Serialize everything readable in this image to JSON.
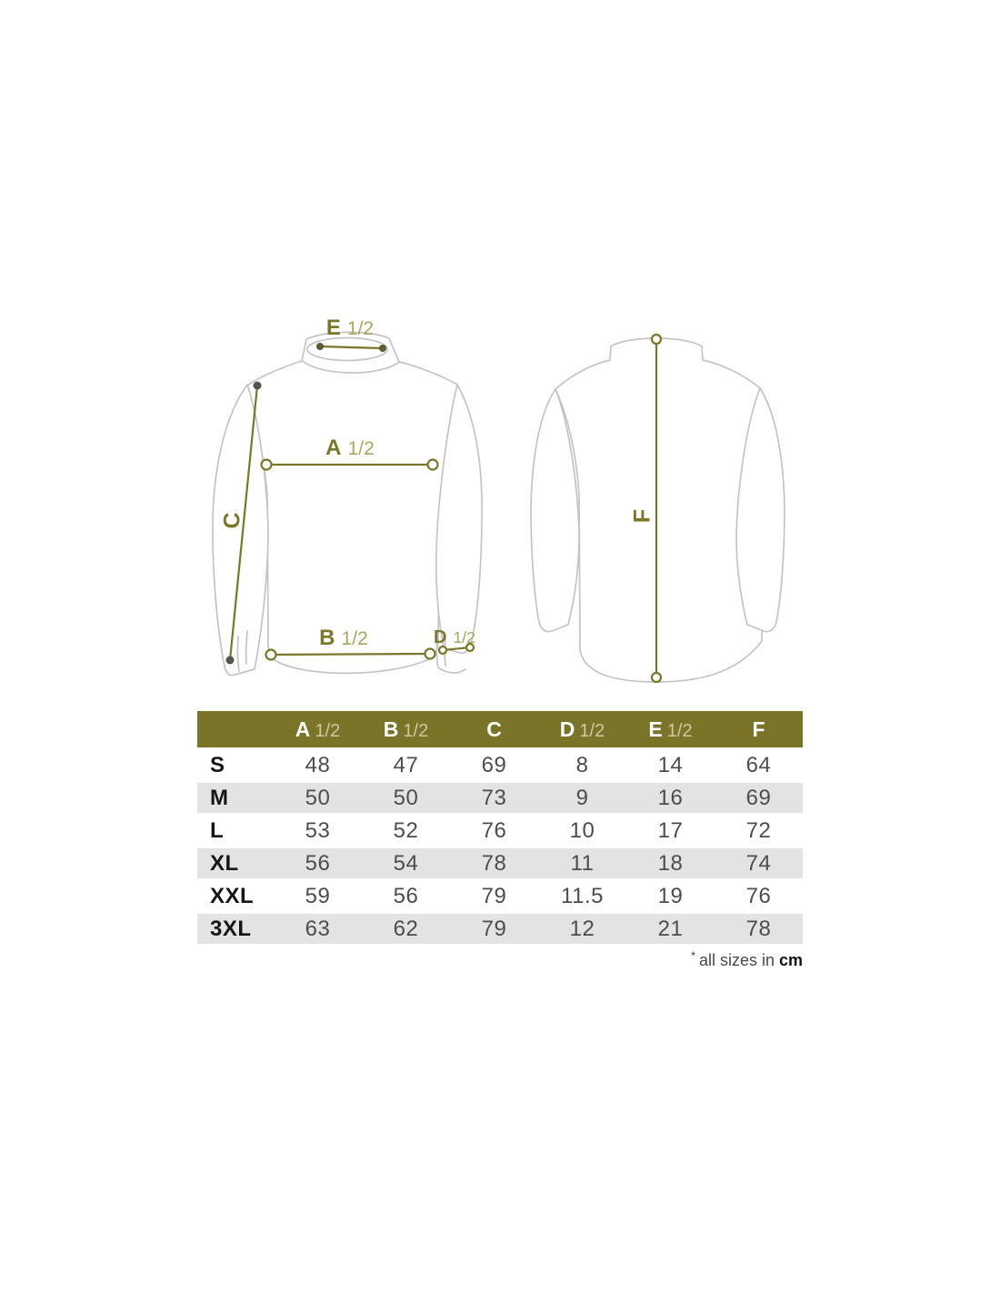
{
  "colors": {
    "accent_olive": "#7A762A",
    "header_bg": "#797428",
    "row_alt_bg": "#E3E3E3",
    "garment_outline": "#C4C4C4",
    "number_text": "#4D4D4D",
    "size_label_text": "#161616",
    "fraction_tint_diagram": "#A9A662",
    "fraction_tint_header": "#CDC9A0"
  },
  "diagram": {
    "labels": {
      "a": {
        "letter": "A",
        "fraction": "1/2"
      },
      "b": {
        "letter": "B",
        "fraction": "1/2"
      },
      "c": {
        "letter": "C",
        "fraction": ""
      },
      "d": {
        "letter": "D",
        "fraction": "1/2"
      },
      "e": {
        "letter": "E",
        "fraction": "1/2"
      },
      "f": {
        "letter": "F",
        "fraction": ""
      }
    }
  },
  "table": {
    "size_column_header": "",
    "columns": [
      {
        "letter": "A",
        "fraction": "1/2"
      },
      {
        "letter": "B",
        "fraction": "1/2"
      },
      {
        "letter": "C",
        "fraction": ""
      },
      {
        "letter": "D",
        "fraction": "1/2"
      },
      {
        "letter": "E",
        "fraction": "1/2"
      },
      {
        "letter": "F",
        "fraction": ""
      }
    ],
    "rows": [
      {
        "size": "S",
        "values": [
          "48",
          "47",
          "69",
          "8",
          "14",
          "64"
        ]
      },
      {
        "size": "M",
        "values": [
          "50",
          "50",
          "73",
          "9",
          "16",
          "69"
        ]
      },
      {
        "size": "L",
        "values": [
          "53",
          "52",
          "76",
          "10",
          "17",
          "72"
        ]
      },
      {
        "size": "XL",
        "values": [
          "56",
          "54",
          "78",
          "11",
          "18",
          "74"
        ]
      },
      {
        "size": "XXL",
        "values": [
          "59",
          "56",
          "79",
          "11.5",
          "19",
          "76"
        ]
      },
      {
        "size": "3XL",
        "values": [
          "63",
          "62",
          "79",
          "12",
          "21",
          "78"
        ]
      }
    ]
  },
  "footnote": {
    "marker": "*",
    "text": "all sizes in",
    "unit": "cm"
  },
  "chart_data": {
    "type": "table",
    "title": "Garment size chart (front and back measurement diagram)",
    "columns": [
      "A 1/2",
      "B 1/2",
      "C",
      "D 1/2",
      "E 1/2",
      "F"
    ],
    "row_labels": [
      "S",
      "M",
      "L",
      "XL",
      "XXL",
      "3XL"
    ],
    "values": [
      [
        48,
        47,
        69,
        8,
        14,
        64
      ],
      [
        50,
        50,
        73,
        9,
        16,
        69
      ],
      [
        53,
        52,
        76,
        10,
        17,
        72
      ],
      [
        56,
        54,
        78,
        11,
        18,
        74
      ],
      [
        59,
        56,
        79,
        11.5,
        19,
        76
      ],
      [
        63,
        62,
        79,
        12,
        21,
        78
      ]
    ],
    "units": "cm"
  }
}
